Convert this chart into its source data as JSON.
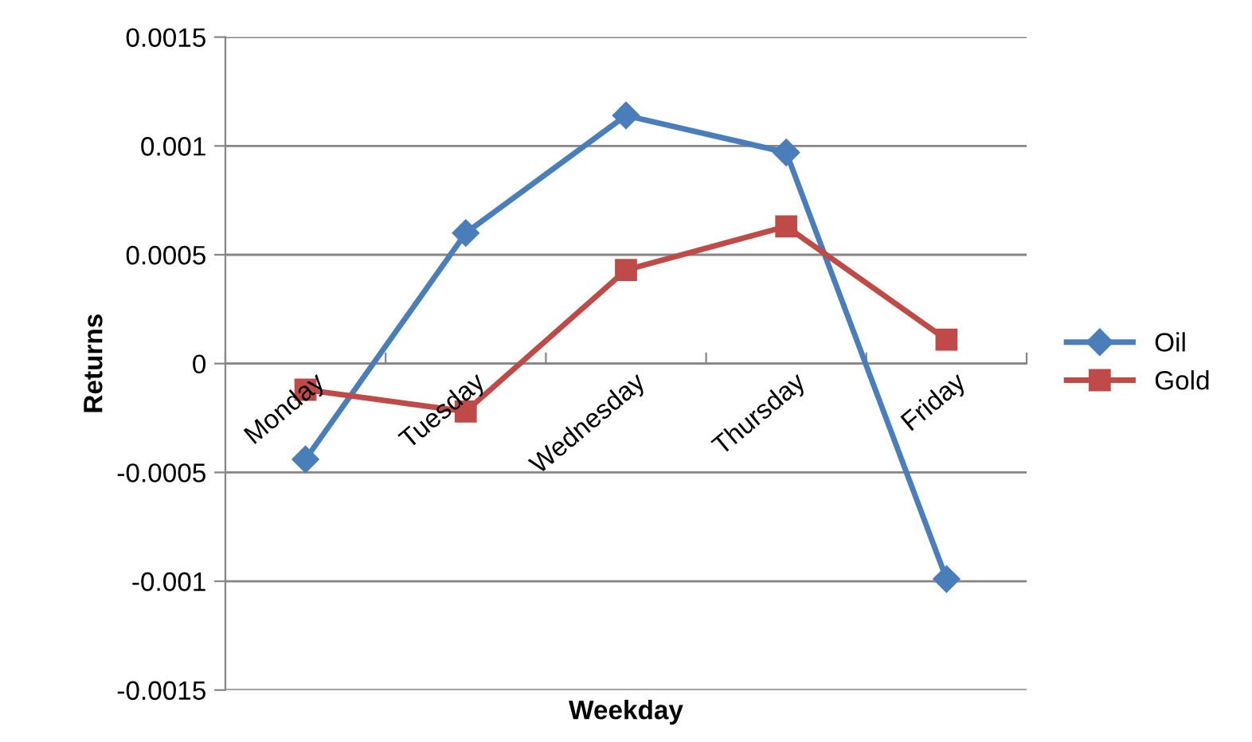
{
  "chart_data": {
    "type": "line",
    "xlabel": "Weekday",
    "ylabel": "Returns",
    "categories": [
      "Monday",
      "Tuesday",
      "Wednesday",
      "Thursday",
      "Friday"
    ],
    "series": [
      {
        "name": "Oil",
        "color": "#4a7ebb",
        "marker": "diamond",
        "values": [
          -0.00044,
          0.0006,
          0.00114,
          0.00097,
          -0.00099
        ]
      },
      {
        "name": "Gold",
        "color": "#be4b48",
        "marker": "square",
        "values": [
          -0.00012,
          -0.00022,
          0.00043,
          0.00063,
          0.00011
        ]
      }
    ],
    "ylim": [
      -0.0015,
      0.0015
    ],
    "yticks": [
      {
        "value": -0.0015,
        "label": "-0.0015"
      },
      {
        "value": -0.001,
        "label": "-0.001"
      },
      {
        "value": -0.0005,
        "label": "-0.0005"
      },
      0,
      {
        "value": 0.0005,
        "label": "0.0005"
      },
      {
        "value": 0.001,
        "label": "0.001"
      },
      {
        "value": 0.0015,
        "label": "0.0015"
      }
    ],
    "grid": "y",
    "legend": "right",
    "line_style": "solid"
  }
}
